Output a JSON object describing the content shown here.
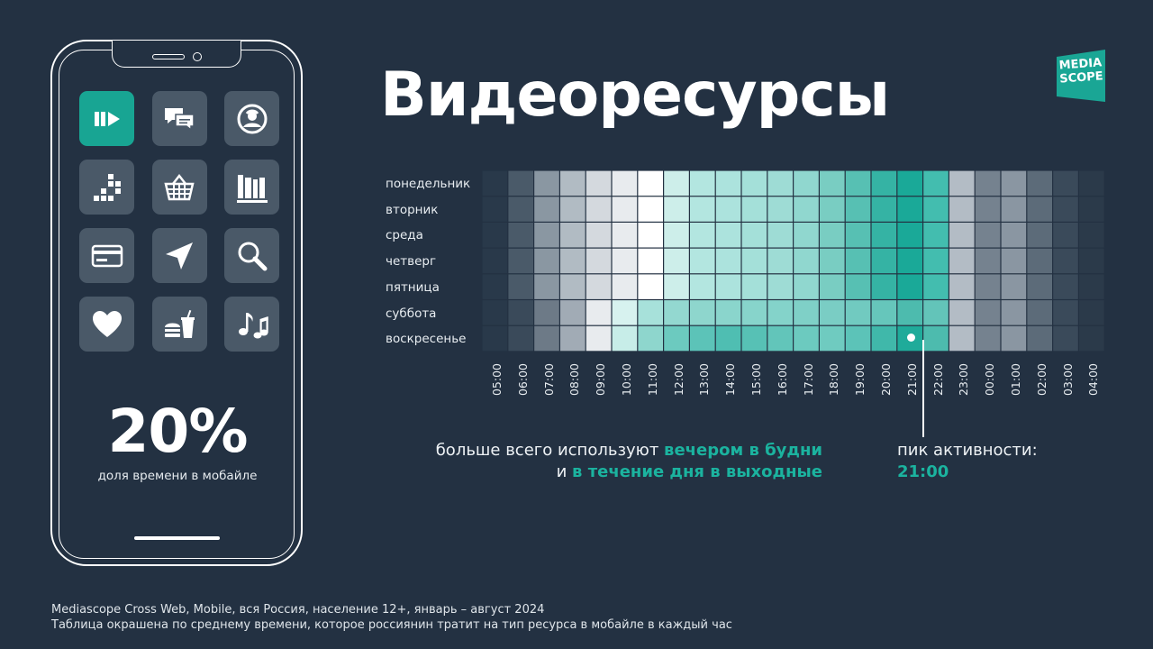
{
  "title": "Видеоресурсы",
  "logo_text": [
    "MEDIA",
    "SCOPE"
  ],
  "phone": {
    "big_value": "20%",
    "caption": "доля времени в мобайле",
    "apps": [
      {
        "icon": "video-play-icon",
        "active": true
      },
      {
        "icon": "chat-bubbles-icon",
        "active": false
      },
      {
        "icon": "profile-avatar-icon",
        "active": false
      },
      {
        "icon": "blocks-game-icon",
        "active": false
      },
      {
        "icon": "shopping-basket-icon",
        "active": false
      },
      {
        "icon": "books-icon",
        "active": false
      },
      {
        "icon": "credit-card-icon",
        "active": false
      },
      {
        "icon": "navigation-arrow-icon",
        "active": false
      },
      {
        "icon": "search-magnifier-icon",
        "active": false
      },
      {
        "icon": "heart-icon",
        "active": false
      },
      {
        "icon": "fast-food-icon",
        "active": false
      },
      {
        "icon": "music-notes-icon",
        "active": false
      }
    ]
  },
  "chart_data": {
    "type": "heatmap",
    "title": "",
    "description_value_scale": "0 = lowest average time (dark), 1 = highest average time (teal); mid values shade from grey to white to teal",
    "rows": [
      "понедельник",
      "вторник",
      "среда",
      "четверг",
      "пятница",
      "суббота",
      "воскресенье"
    ],
    "columns": [
      "05:00",
      "06:00",
      "07:00",
      "08:00",
      "09:00",
      "10:00",
      "11:00",
      "12:00",
      "13:00",
      "14:00",
      "15:00",
      "16:00",
      "17:00",
      "18:00",
      "19:00",
      "20:00",
      "21:00",
      "22:00",
      "23:00",
      "00:00",
      "01:00",
      "02:00",
      "03:00",
      "04:00"
    ],
    "colors": {
      "weekday": [
        "#29394a",
        "#4a5a69",
        "#8a97a2",
        "#b1bbc3",
        "#d4d9de",
        "#e8ebee",
        "#ffffff",
        "#cdeeea",
        "#b3e6e0",
        "#ace3dd",
        "#a4e0d9",
        "#9edcd5",
        "#90d7cf",
        "#79cdc2",
        "#57c0b3",
        "#35b3a4",
        "#1aa998",
        "#43bdaf",
        "#b3bcc5",
        "#75828f",
        "#8a96a2",
        "#5c6b79",
        "#3a4a5a",
        "#2b3a4a"
      ],
      "saturday": [
        "#29394a",
        "#3a4a5a",
        "#6d7a87",
        "#a1abb5",
        "#e8ebee",
        "#d7f2ef",
        "#a7e1da",
        "#93d8d0",
        "#8ed6cd",
        "#8ad5cc",
        "#87d4cb",
        "#84d3ca",
        "#7fd0c7",
        "#7acdc4",
        "#71cac0",
        "#66c6bb",
        "#4dbbae",
        "#63c4b9",
        "#b3bcc5",
        "#75828f",
        "#8a96a2",
        "#5c6b79",
        "#3a4a5a",
        "#2b3a4a"
      ],
      "sunday": [
        "#29394a",
        "#3a4a5a",
        "#6d7a87",
        "#a1abb5",
        "#e8ebee",
        "#c7ede8",
        "#8ed6cd",
        "#6ccabf",
        "#5cc3b8",
        "#4fbeb2",
        "#57c1b5",
        "#62c5ba",
        "#6ccabf",
        "#6fcbc0",
        "#5cc3b8",
        "#40b8aa",
        "#1fab9a",
        "#4dbbae",
        "#b3bcc5",
        "#75828f",
        "#8a96a2",
        "#5c6b79",
        "#3a4a5a",
        "#2b3a4a"
      ]
    },
    "row_color_key": [
      "weekday",
      "weekday",
      "weekday",
      "weekday",
      "weekday",
      "saturday",
      "sunday"
    ],
    "peak": {
      "row": "воскресенье",
      "column": "21:00"
    }
  },
  "insight": {
    "prefix": "больше всего используют ",
    "accent1": "вечером в будни",
    "mid": " и ",
    "accent2": "в течение дня в выходные"
  },
  "peak_label": "пик активности:",
  "peak_value": "21:00",
  "footnote": [
    "Mediascope Cross Web, Mobile, вся Россия, население 12+, январь – август 2024",
    "Таблица окрашена по среднему времени, которое россиянин тратит на тип ресурса в мобайле в каждый час"
  ]
}
